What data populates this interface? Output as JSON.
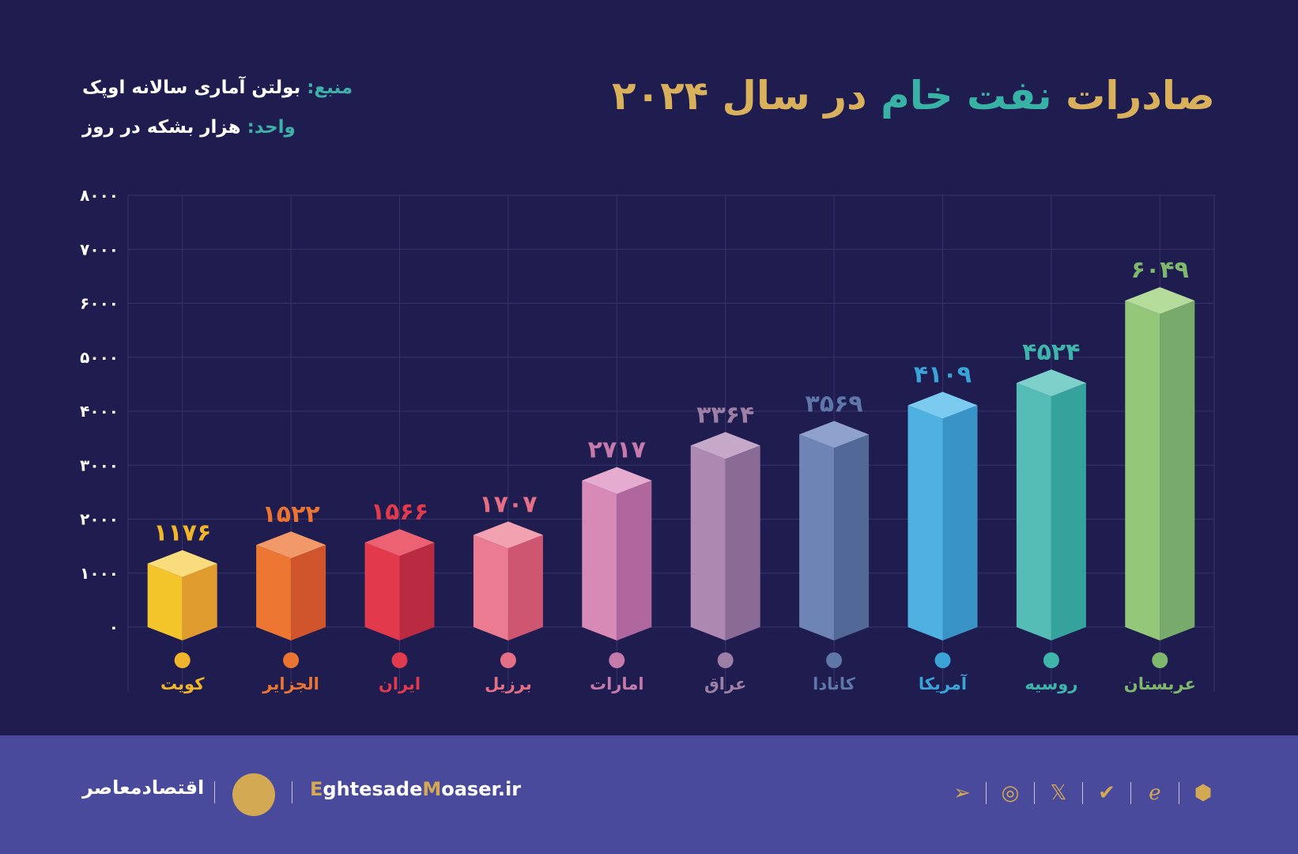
{
  "header": {
    "title_part1": "صادرات ",
    "title_highlight": "نفت خام",
    "title_part2": " در سال ۲۰۲۴",
    "source_key": "منبع:",
    "source_value": " بولتن آماری سالانه اوپک",
    "unit_key": "واحد:",
    "unit_value": " هزار بشکه در روز"
  },
  "chart_data": {
    "type": "bar",
    "categories": [
      "کویت",
      "الجزایر",
      "ایران",
      "برزیل",
      "امارات",
      "عراق",
      "کانادا",
      "آمریکا",
      "روسیه",
      "عربستان"
    ],
    "values": [
      1176,
      1522,
      1566,
      1707,
      2717,
      3364,
      3569,
      4109,
      4524,
      6049
    ],
    "value_labels": [
      "۱۱۷۶",
      "۱۵۲۲",
      "۱۵۶۶",
      "۱۷۰۷",
      "۲۷۱۷",
      "۳۳۶۴",
      "۳۵۶۹",
      "۴۱۰۹",
      "۴۵۲۴",
      "۶۰۴۹"
    ],
    "ylim": [
      0,
      8000
    ],
    "yticks": [
      0,
      1000,
      2000,
      3000,
      4000,
      5000,
      6000,
      7000,
      8000
    ],
    "ytick_labels": [
      "۰",
      "۱۰۰۰",
      "۲۰۰۰",
      "۳۰۰۰",
      "۴۰۰۰",
      "۵۰۰۰",
      "۶۰۰۰",
      "۷۰۰۰",
      "۸۰۰۰"
    ],
    "grid": true,
    "colors": [
      [
        "#f4c52a",
        "#e09c2e",
        "#f9dc7c"
      ],
      [
        "#ec7632",
        "#d0552c",
        "#f2996a"
      ],
      [
        "#e2394c",
        "#ba2a40",
        "#ec6272"
      ],
      [
        "#ea7b90",
        "#cf5670",
        "#f2a1b1"
      ],
      [
        "#d88ab7",
        "#b0679e",
        "#e6acd0"
      ],
      [
        "#ad88b0",
        "#8a6b95",
        "#c6a9c8"
      ],
      [
        "#6e84b4",
        "#526896",
        "#8ea2cd"
      ],
      [
        "#4fb1e1",
        "#3993c6",
        "#7acbef"
      ],
      [
        "#55bdb6",
        "#35a39c",
        "#7ed1cb"
      ],
      [
        "#94c77a",
        "#78ab6b",
        "#b6dc9c"
      ]
    ],
    "label_colors": [
      "#f0b52a",
      "#ea7432",
      "#e03a4c",
      "#e46f86",
      "#c57aab",
      "#9d7fa6",
      "#5f76a8",
      "#3aa3d8",
      "#3fb4aa",
      "#7fb86c"
    ]
  },
  "footer": {
    "brand": "اقتصادمعاصر",
    "url_e": "E",
    "url_mid": "ghtesade",
    "url_m": "M",
    "url_rest": "oaser.ir",
    "icons": [
      "telegram-icon",
      "instagram-icon",
      "x-icon",
      "bale-icon",
      "eitaa-icon",
      "rubika-icon"
    ]
  }
}
